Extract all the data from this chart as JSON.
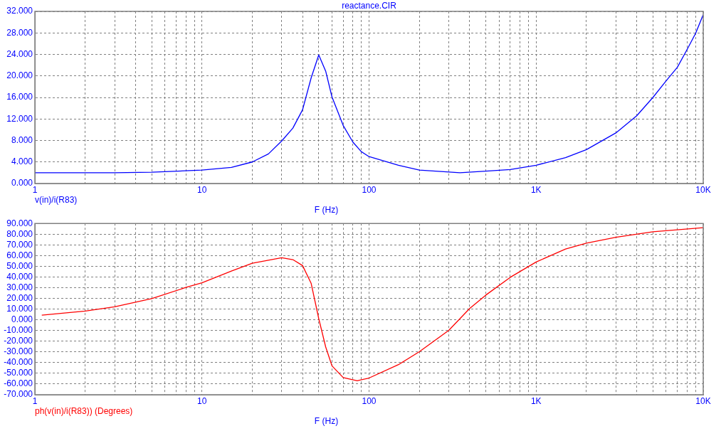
{
  "chart_data": [
    {
      "type": "line",
      "title": "reactance.CIR",
      "xlabel": "F (Hz)",
      "log": "x",
      "grid": true,
      "legend": "bottom left",
      "x": [
        1,
        3,
        5,
        10,
        15,
        20,
        25,
        30,
        35,
        40,
        45,
        50,
        55,
        60,
        70,
        80,
        90,
        100,
        150,
        200,
        350,
        500,
        700,
        1000,
        1500,
        2000,
        3000,
        4000,
        5000,
        6000,
        7000,
        8000,
        9000,
        10000
      ],
      "series": [
        {
          "name": "v(in)/i(R83)",
          "color": "#0000ff",
          "values": [
            2.0,
            2.0,
            2.1,
            2.5,
            3.0,
            4.0,
            5.5,
            7.9,
            10.3,
            13.7,
            19.6,
            23.9,
            20.9,
            16.1,
            10.8,
            7.7,
            5.9,
            5.0,
            3.4,
            2.5,
            2.0,
            2.3,
            2.6,
            3.4,
            4.8,
            6.3,
            9.4,
            12.6,
            16.0,
            19.1,
            21.6,
            24.9,
            27.9,
            31.4
          ]
        }
      ],
      "xlim": [
        1,
        10000
      ],
      "xticks": [
        1,
        {
          "value": 2,
          "label": null
        },
        {
          "value": 3,
          "label": null
        },
        {
          "value": 4,
          "label": null
        },
        {
          "value": 5,
          "label": null
        },
        {
          "value": 6,
          "label": null
        },
        {
          "value": 7,
          "label": null
        },
        {
          "value": 8,
          "label": null
        },
        {
          "value": 9,
          "label": null
        },
        10,
        {
          "value": 20,
          "label": null
        },
        {
          "value": 30,
          "label": null
        },
        {
          "value": 40,
          "label": null
        },
        {
          "value": 50,
          "label": null
        },
        {
          "value": 60,
          "label": null
        },
        {
          "value": 70,
          "label": null
        },
        {
          "value": 80,
          "label": null
        },
        {
          "value": 90,
          "label": null
        },
        100,
        {
          "value": 200,
          "label": null
        },
        {
          "value": 300,
          "label": null
        },
        {
          "value": 400,
          "label": null
        },
        {
          "value": 500,
          "label": null
        },
        {
          "value": 600,
          "label": null
        },
        {
          "value": 700,
          "label": null
        },
        {
          "value": 800,
          "label": null
        },
        {
          "value": 900,
          "label": null
        },
        {
          "value": 1000,
          "label": "1K"
        },
        {
          "value": 2000,
          "label": null
        },
        {
          "value": 3000,
          "label": null
        },
        {
          "value": 4000,
          "label": null
        },
        {
          "value": 5000,
          "label": null
        },
        {
          "value": 6000,
          "label": null
        },
        {
          "value": 7000,
          "label": null
        },
        {
          "value": 8000,
          "label": null
        },
        {
          "value": 9000,
          "label": null
        },
        {
          "value": 10000,
          "label": "10K"
        }
      ],
      "ylim": [
        0,
        32
      ],
      "yticks": [
        {
          "value": 0,
          "label": "0.000"
        },
        {
          "value": 4,
          "label": "4.000"
        },
        {
          "value": 8,
          "label": "8.000"
        },
        {
          "value": 12,
          "label": "12.000"
        },
        {
          "value": 16,
          "label": "16.000"
        },
        {
          "value": 20,
          "label": "20.000"
        },
        {
          "value": 24,
          "label": "24.000"
        },
        {
          "value": 28,
          "label": "28.000"
        },
        {
          "value": 32,
          "label": "32.000"
        }
      ]
    },
    {
      "type": "line",
      "xlabel": "F (Hz)",
      "log": "x",
      "grid": true,
      "legend": "bottom left",
      "x": [
        1.1,
        2,
        3,
        5,
        8,
        10,
        15,
        20,
        30,
        35,
        40,
        45,
        50,
        55,
        60,
        70,
        85,
        100,
        150,
        200,
        300,
        400,
        500,
        700,
        1000,
        1500,
        2000,
        3000,
        5000,
        10000
      ],
      "series": [
        {
          "name": "ph(v(in)/i(R83)) (Degrees)",
          "color": "#ff0000",
          "values": [
            4.4,
            8.2,
            12.1,
            19.8,
            30.2,
            34.6,
            45.6,
            52.9,
            58.0,
            56.2,
            50.7,
            34.2,
            1.1,
            -25.3,
            -43.0,
            -54.0,
            -56.9,
            -54.4,
            -41.9,
            -29.8,
            -9.9,
            10.6,
            23.1,
            39.7,
            54.0,
            66.1,
            71.6,
            77.1,
            82.2,
            86.0
          ]
        }
      ],
      "xlim": [
        1,
        10000
      ],
      "xticks": [
        1,
        {
          "value": 2,
          "label": null
        },
        {
          "value": 3,
          "label": null
        },
        {
          "value": 4,
          "label": null
        },
        {
          "value": 5,
          "label": null
        },
        {
          "value": 6,
          "label": null
        },
        {
          "value": 7,
          "label": null
        },
        {
          "value": 8,
          "label": null
        },
        {
          "value": 9,
          "label": null
        },
        10,
        {
          "value": 20,
          "label": null
        },
        {
          "value": 30,
          "label": null
        },
        {
          "value": 40,
          "label": null
        },
        {
          "value": 50,
          "label": null
        },
        {
          "value": 60,
          "label": null
        },
        {
          "value": 70,
          "label": null
        },
        {
          "value": 80,
          "label": null
        },
        {
          "value": 90,
          "label": null
        },
        100,
        {
          "value": 200,
          "label": null
        },
        {
          "value": 300,
          "label": null
        },
        {
          "value": 400,
          "label": null
        },
        {
          "value": 500,
          "label": null
        },
        {
          "value": 600,
          "label": null
        },
        {
          "value": 700,
          "label": null
        },
        {
          "value": 800,
          "label": null
        },
        {
          "value": 900,
          "label": null
        },
        {
          "value": 1000,
          "label": "1K"
        },
        {
          "value": 2000,
          "label": null
        },
        {
          "value": 3000,
          "label": null
        },
        {
          "value": 4000,
          "label": null
        },
        {
          "value": 5000,
          "label": null
        },
        {
          "value": 6000,
          "label": null
        },
        {
          "value": 7000,
          "label": null
        },
        {
          "value": 8000,
          "label": null
        },
        {
          "value": 9000,
          "label": null
        },
        {
          "value": 10000,
          "label": "10K"
        }
      ],
      "ylim": [
        -70,
        90
      ],
      "yticks": [
        {
          "value": -70,
          "label": "-70.000"
        },
        {
          "value": -60,
          "label": "-60.000"
        },
        {
          "value": -50,
          "label": "-50.000"
        },
        {
          "value": -40,
          "label": "-40.000"
        },
        {
          "value": -30,
          "label": "-30.000"
        },
        {
          "value": -20,
          "label": "-20.000"
        },
        {
          "value": -10,
          "label": "-10.000"
        },
        {
          "value": 0,
          "label": "0.000"
        },
        {
          "value": 10,
          "label": "10.000"
        },
        {
          "value": 20,
          "label": "20.000"
        },
        {
          "value": 30,
          "label": "30.000"
        },
        {
          "value": 40,
          "label": "40.000"
        },
        {
          "value": 50,
          "label": "50.000"
        },
        {
          "value": 60,
          "label": "60.000"
        },
        {
          "value": 70,
          "label": "70.000"
        },
        {
          "value": 80,
          "label": "80.000"
        },
        {
          "value": 90,
          "label": "90.000"
        }
      ]
    }
  ]
}
